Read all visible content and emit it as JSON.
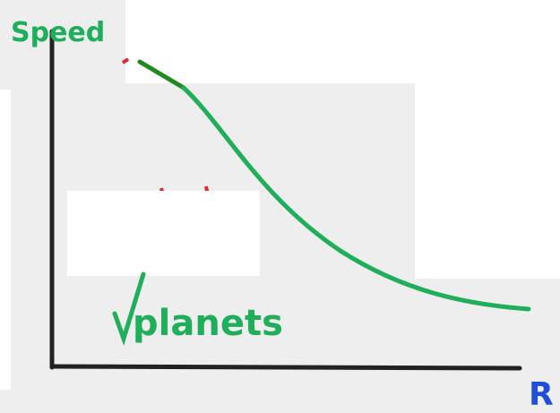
{
  "labels": {
    "y_axis": "Speed",
    "x_axis": "R",
    "curve": "planets"
  }
}
